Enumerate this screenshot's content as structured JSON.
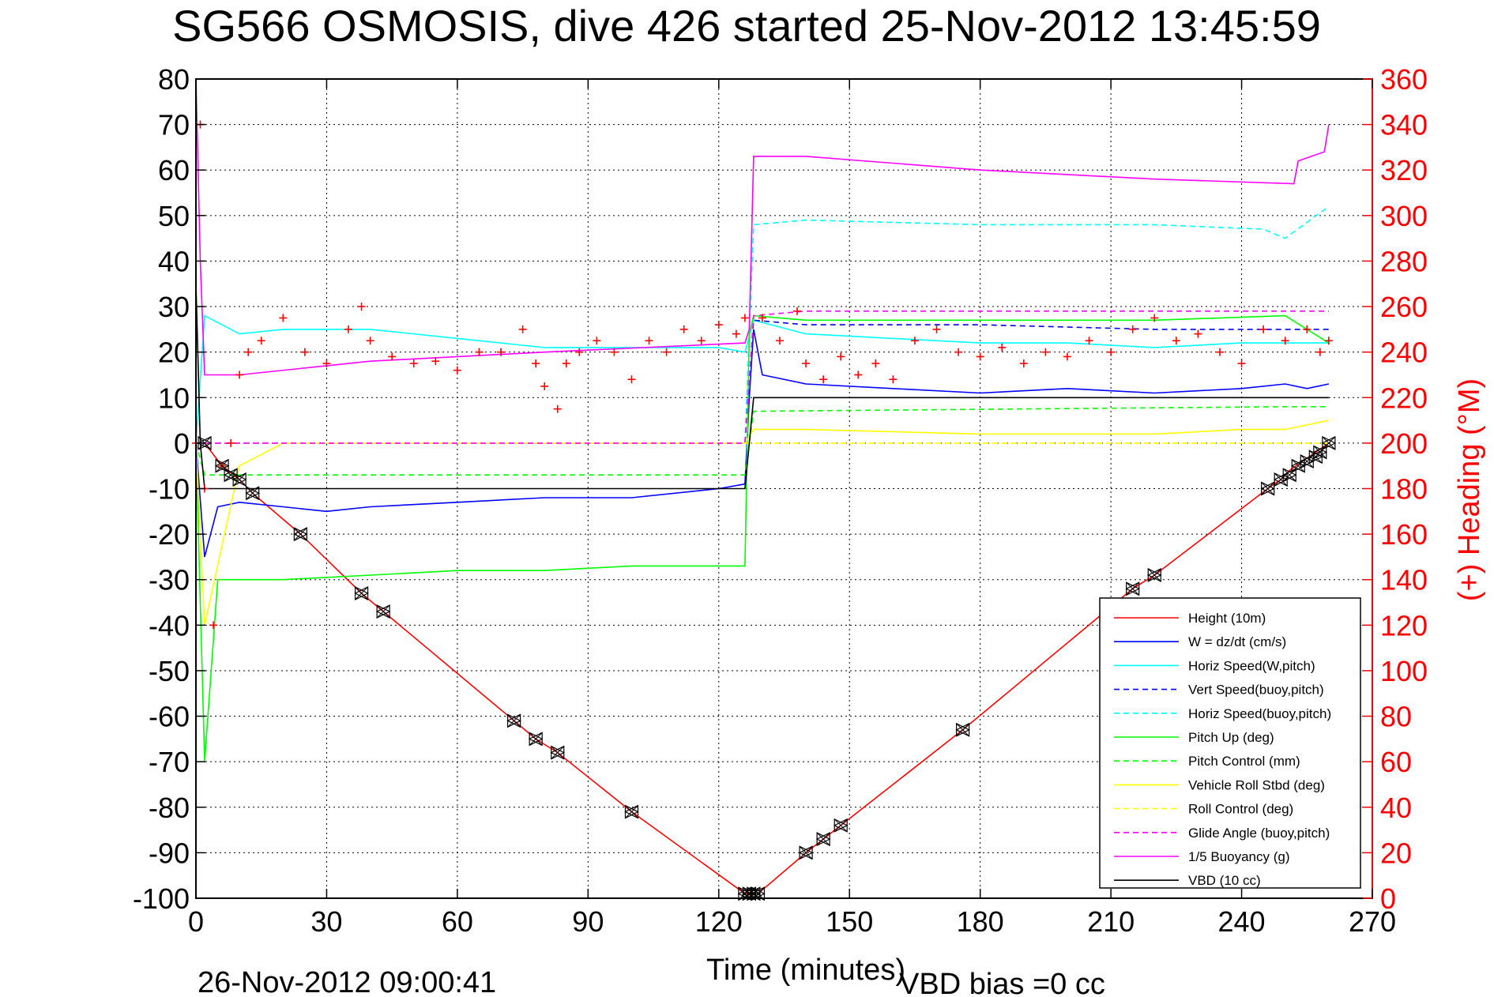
{
  "chart_data": {
    "type": "line",
    "title": "SG566 OSMOSIS, dive 426 started 25-Nov-2012 13:45:59",
    "xlabel": "Time (minutes)",
    "ylabel_right": "(+) Heading (°M)",
    "xlim": [
      0,
      270
    ],
    "ylim": [
      -100,
      80
    ],
    "ylim_right": [
      0,
      360
    ],
    "x_ticks": [
      "0",
      "30",
      "60",
      "90",
      "120",
      "150",
      "180",
      "210",
      "240",
      "270"
    ],
    "y_ticks": [
      "80",
      "70",
      "60",
      "50",
      "40",
      "30",
      "20",
      "10",
      "0",
      "-10",
      "-20",
      "-30",
      "-40",
      "-50",
      "-60",
      "-70",
      "-80",
      "-90",
      "-100"
    ],
    "y_right_ticks": [
      "360",
      "340",
      "320",
      "300",
      "280",
      "260",
      "240",
      "220",
      "200",
      "180",
      "160",
      "140",
      "120",
      "100",
      "80",
      "60",
      "40",
      "20",
      "0"
    ],
    "grid": true,
    "legend_position": "bottom-right",
    "footer_date": "26-Nov-2012 09:00:41",
    "footer_vbd": "VBD bias =0 cc",
    "series": [
      {
        "name": "Height (10m)",
        "color": "#ff0000",
        "style": "solid",
        "x": [
          0,
          2,
          6,
          10,
          13,
          24,
          38,
          43,
          73,
          78,
          83,
          100,
          126,
          127,
          129,
          140,
          144,
          148,
          176,
          215,
          220,
          246,
          249,
          251,
          254,
          257,
          260
        ],
        "y": [
          0,
          0,
          -5,
          -8,
          -11,
          -20,
          -33,
          -37,
          -61,
          -65,
          -68,
          -81,
          -99,
          -99,
          -99,
          -90,
          -87,
          -84,
          -63,
          -32,
          -29,
          -10,
          -8,
          -6,
          -4,
          -2,
          0
        ]
      },
      {
        "name": "W = dz/dt (cm/s)",
        "color": "#0000ff",
        "style": "solid",
        "x": [
          0,
          2,
          5,
          10,
          20,
          30,
          40,
          60,
          80,
          100,
          120,
          126,
          127,
          128,
          130,
          140,
          160,
          180,
          200,
          220,
          240,
          250,
          255,
          260
        ],
        "y": [
          0,
          -25,
          -14,
          -13,
          -14,
          -15,
          -14,
          -13,
          -12,
          -12,
          -10,
          -9,
          10,
          25,
          15,
          13,
          12,
          11,
          12,
          11,
          12,
          13,
          12,
          13
        ]
      },
      {
        "name": "Horiz Speed(W,pitch)",
        "color": "#00ffff",
        "style": "solid",
        "x": [
          0,
          2,
          10,
          20,
          40,
          60,
          80,
          100,
          120,
          126,
          128,
          140,
          160,
          180,
          200,
          220,
          240,
          250,
          260
        ],
        "y": [
          0,
          28,
          24,
          25,
          25,
          23,
          21,
          21,
          21,
          20,
          27,
          24,
          23,
          22,
          22,
          21,
          22,
          22,
          22
        ]
      },
      {
        "name": "Vert Speed(buoy,pitch)",
        "color": "#0000ff",
        "style": "dashed",
        "x": [
          0,
          2,
          10,
          126,
          128,
          140,
          180,
          220,
          250,
          260
        ],
        "y": [
          0,
          0,
          0,
          0,
          27,
          26,
          26,
          25,
          25,
          25
        ]
      },
      {
        "name": "Horiz Speed(buoy,pitch)",
        "color": "#00ffff",
        "style": "dashed",
        "x": [
          0,
          2,
          126,
          128,
          140,
          180,
          220,
          245,
          250,
          260
        ],
        "y": [
          0,
          0,
          0,
          48,
          49,
          48,
          48,
          47,
          45,
          52
        ]
      },
      {
        "name": "Pitch Up (deg)",
        "color": "#00ff00",
        "style": "solid",
        "x": [
          0,
          2,
          5,
          10,
          20,
          40,
          60,
          80,
          100,
          120,
          126,
          127,
          128,
          140,
          180,
          220,
          250,
          260
        ],
        "y": [
          0,
          -70,
          -30,
          -30,
          -30,
          -29,
          -28,
          -28,
          -27,
          -27,
          -27,
          24,
          28,
          27,
          27,
          27,
          28,
          22
        ]
      },
      {
        "name": "Pitch Control (mm)",
        "color": "#00ff00",
        "style": "dashed",
        "x": [
          0,
          2,
          126,
          128,
          250,
          260
        ],
        "y": [
          0,
          -7,
          -7,
          7,
          8,
          8
        ]
      },
      {
        "name": "Vehicle Roll Stbd (deg)",
        "color": "#ffff00",
        "style": "solid",
        "x": [
          0,
          2,
          10,
          20,
          60,
          100,
          126,
          128,
          140,
          180,
          220,
          240,
          250,
          260
        ],
        "y": [
          0,
          -40,
          -5,
          0,
          0,
          0,
          0,
          3,
          3,
          2,
          2,
          3,
          3,
          5
        ]
      },
      {
        "name": "Roll Control (deg)",
        "color": "#ffff00",
        "style": "dashed",
        "x": [
          0,
          2,
          126,
          128,
          260
        ],
        "y": [
          0,
          0,
          0,
          0,
          0
        ]
      },
      {
        "name": "Glide Angle (buoy,pitch)",
        "color": "#ff00ff",
        "style": "dashed",
        "x": [
          0,
          2,
          126,
          128,
          140,
          180,
          220,
          250,
          260
        ],
        "y": [
          0,
          0,
          0,
          28,
          29,
          29,
          29,
          29,
          29
        ]
      },
      {
        "name": "1/5 Buoyancy (g)",
        "color": "#ff00ff",
        "style": "solid",
        "x": [
          0,
          1,
          2,
          10,
          40,
          80,
          126,
          127,
          128,
          140,
          180,
          220,
          252,
          253,
          256,
          259,
          260
        ],
        "y": [
          80,
          40,
          15,
          15,
          18,
          20,
          22,
          25,
          63,
          63,
          60,
          58,
          57,
          62,
          63,
          64,
          70
        ]
      },
      {
        "name": "VBD (10 cc)",
        "color": "#000000",
        "style": "solid",
        "x": [
          0,
          1,
          2,
          126,
          127,
          128,
          129,
          250,
          255,
          260
        ],
        "y": [
          35,
          0,
          -10,
          -10,
          0,
          10,
          10,
          10,
          10,
          10
        ]
      }
    ],
    "heading": {
      "axis": "right",
      "color": "#ff0000",
      "marker": "+",
      "x": [
        0,
        1,
        2,
        4,
        6,
        8,
        10,
        12,
        15,
        20,
        25,
        30,
        35,
        38,
        40,
        45,
        50,
        55,
        60,
        65,
        70,
        75,
        78,
        80,
        83,
        85,
        88,
        92,
        96,
        100,
        104,
        108,
        112,
        116,
        120,
        124,
        126,
        130,
        134,
        138,
        140,
        144,
        148,
        152,
        156,
        160,
        165,
        170,
        175,
        180,
        185,
        190,
        195,
        200,
        205,
        210,
        215,
        220,
        225,
        230,
        235,
        240,
        245,
        250,
        255,
        258,
        260
      ],
      "y": [
        200,
        340,
        180,
        120,
        190,
        200,
        230,
        240,
        245,
        255,
        240,
        235,
        250,
        260,
        245,
        238,
        235,
        236,
        232,
        240,
        240,
        250,
        235,
        225,
        215,
        235,
        240,
        245,
        240,
        228,
        245,
        240,
        250,
        245,
        252,
        248,
        255,
        255,
        245,
        258,
        235,
        228,
        238,
        230,
        235,
        228,
        245,
        250,
        240,
        238,
        242,
        235,
        240,
        238,
        245,
        240,
        250,
        255,
        245,
        248,
        240,
        235,
        250,
        245,
        250,
        240,
        245
      ]
    },
    "markers": {
      "color": "#000000",
      "symbols": [
        "triangle-left",
        "triangle-right",
        "x"
      ],
      "x": [
        2,
        6,
        8,
        10,
        13,
        24,
        38,
        43,
        73,
        78,
        83,
        100,
        126,
        127,
        128,
        129,
        140,
        144,
        148,
        176,
        215,
        220,
        246,
        249,
        251,
        253,
        255,
        257,
        258,
        260
      ],
      "y": [
        0,
        -5,
        -7,
        -8,
        -11,
        -20,
        -33,
        -37,
        -61,
        -65,
        -68,
        -81,
        -99,
        -99,
        -99,
        -99,
        -90,
        -87,
        -84,
        -63,
        -32,
        -29,
        -10,
        -8,
        -7,
        -5,
        -4,
        -3,
        -2,
        0
      ]
    }
  }
}
